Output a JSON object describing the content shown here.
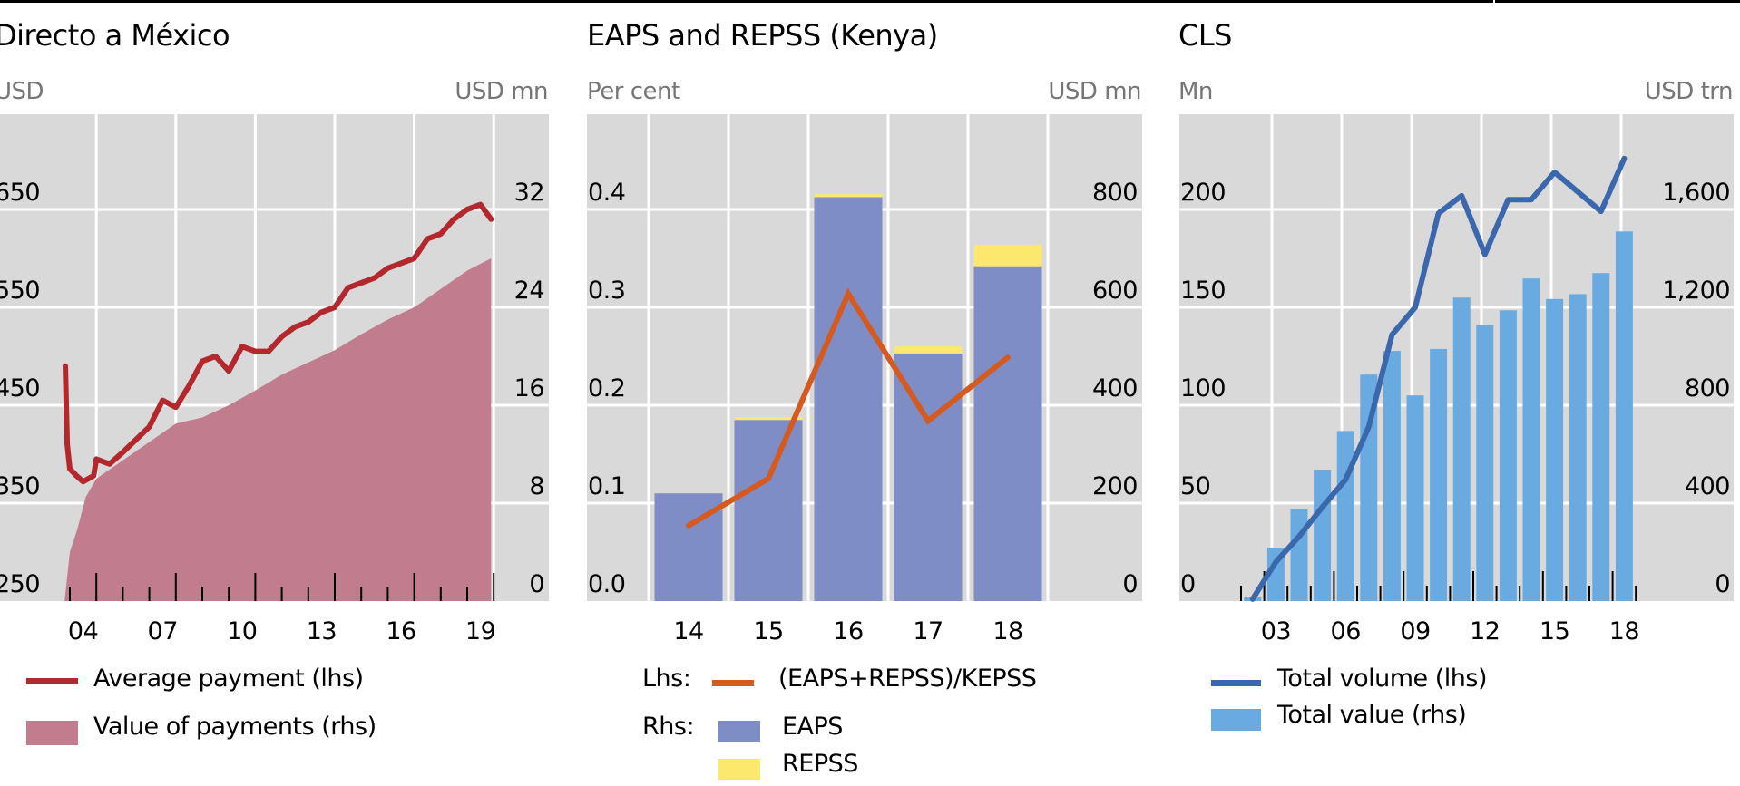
{
  "colors": {
    "plot_bg": "#d9d9d9",
    "grid": "#ffffff",
    "tick": "#000000",
    "dam_line": "#b2282d",
    "dam_area": "#c17d8e",
    "kenya_eaps": "#7f8dc6",
    "kenya_repss": "#fde86e",
    "kenya_line": "#d55a1f",
    "cls_line": "#3b68ad",
    "cls_bars": "#69abe1"
  },
  "chart_data": [
    {
      "id": "directo",
      "type": "line+area",
      "title": "Directo a México",
      "ylabel_left": "USD",
      "ylabel_right": "USD mn",
      "yticks_left": [
        "250",
        "350",
        "450",
        "550",
        "650"
      ],
      "yticks_right": [
        "0",
        "8",
        "16",
        "24",
        "32"
      ],
      "ylim_left": [
        250,
        750
      ],
      "ylim_right": [
        0,
        40
      ],
      "grid": true,
      "xlim": [
        2003.4,
        2020.9
      ],
      "xtick_labels": [
        {
          "year": 2004,
          "label": "04"
        },
        {
          "year": 2007,
          "label": "07"
        },
        {
          "year": 2010,
          "label": "10"
        },
        {
          "year": 2013,
          "label": "13"
        },
        {
          "year": 2016,
          "label": "16"
        },
        {
          "year": 2019,
          "label": "19"
        }
      ],
      "series": [
        {
          "name": "Average payment (lhs)",
          "kind": "line",
          "axis": "left",
          "x": [
            2003.83,
            2003.9,
            2004.0,
            2004.25,
            2004.5,
            2004.9,
            2005.0,
            2005.5,
            2006.0,
            2006.5,
            2007.0,
            2007.5,
            2008.0,
            2008.5,
            2009.0,
            2009.5,
            2010.0,
            2010.5,
            2011.0,
            2011.5,
            2012.0,
            2012.5,
            2013.0,
            2013.5,
            2014.0,
            2014.5,
            2015.0,
            2015.5,
            2016.0,
            2016.5,
            2017.0,
            2017.5,
            2018.0,
            2018.5,
            2019.0,
            2019.5,
            2019.9
          ],
          "values": [
            490,
            410,
            385,
            378,
            372,
            378,
            395,
            390,
            402,
            415,
            428,
            455,
            448,
            470,
            495,
            500,
            485,
            510,
            505,
            505,
            520,
            530,
            535,
            545,
            550,
            570,
            575,
            580,
            590,
            595,
            600,
            620,
            625,
            640,
            650,
            655,
            640
          ]
        },
        {
          "name": "Value of payments (rhs)",
          "kind": "area",
          "axis": "right",
          "x": [
            2003.8,
            2004.0,
            2004.3,
            2004.6,
            2005.0,
            2006.0,
            2007.0,
            2008.0,
            2009.0,
            2010.0,
            2011.0,
            2012.0,
            2013.0,
            2014.0,
            2015.0,
            2016.0,
            2017.0,
            2018.0,
            2019.0,
            2019.9
          ],
          "values": [
            0,
            4,
            6,
            8.5,
            10,
            11.5,
            13,
            14.5,
            15,
            16,
            17.2,
            18.5,
            19.5,
            20.5,
            21.8,
            23,
            24,
            25.5,
            27,
            28
          ]
        }
      ],
      "legend": [
        "Average payment (lhs)",
        "Value of payments (rhs)"
      ],
      "legend_placement": "bottom"
    },
    {
      "id": "kenya",
      "type": "bar+line",
      "title": "EAPS and REPSS (Kenya)",
      "ylabel_left": "Per cent",
      "ylabel_right": "USD mn",
      "yticks_left": [
        "0.0",
        "0.1",
        "0.2",
        "0.3",
        "0.4"
      ],
      "yticks_right": [
        "0",
        "200",
        "400",
        "600",
        "800"
      ],
      "ylim_left": [
        0,
        0.5
      ],
      "ylim_right": [
        0,
        1000
      ],
      "grid": true,
      "categories": [
        "14",
        "15",
        "16",
        "17",
        "18"
      ],
      "series": [
        {
          "name": "EAPS",
          "kind": "bar",
          "axis": "right",
          "stack": "rhs",
          "values": [
            220,
            370,
            825,
            506,
            684
          ]
        },
        {
          "name": "REPSS",
          "kind": "bar",
          "axis": "right",
          "stack": "rhs",
          "values": [
            0,
            6,
            6,
            14,
            44
          ]
        },
        {
          "name": "(EAPS+REPSS)/KEPSS",
          "kind": "line",
          "axis": "left",
          "values": [
            0.077,
            0.125,
            0.314,
            0.184,
            0.249
          ]
        }
      ],
      "legend": {
        "lhs_label": "Lhs:",
        "rhs_label": "Rhs:",
        "line": "(EAPS+REPSS)/KEPSS",
        "bars": [
          "EAPS",
          "REPSS"
        ]
      },
      "legend_placement": "bottom"
    },
    {
      "id": "cls",
      "type": "bar+line",
      "title": "CLS",
      "ylabel_left": "Mn",
      "ylabel_right": "USD trn",
      "yticks_left": [
        "0",
        "50",
        "100",
        "150",
        "200"
      ],
      "yticks_right": [
        "0",
        "400",
        "800",
        "1,200",
        "1,600"
      ],
      "ylim_left": [
        0,
        250
      ],
      "ylim_right": [
        0,
        2000
      ],
      "grid": true,
      "categories": [
        "2002",
        "2003",
        "2004",
        "2005",
        "2006",
        "2007",
        "2008",
        "2009",
        "2010",
        "2011",
        "2012",
        "2013",
        "2014",
        "2015",
        "2016",
        "2017",
        "2018"
      ],
      "xtick_labels": [
        {
          "index": 1,
          "label": "03"
        },
        {
          "index": 4,
          "label": "06"
        },
        {
          "index": 7,
          "label": "09"
        },
        {
          "index": 10,
          "label": "12"
        },
        {
          "index": 13,
          "label": "15"
        },
        {
          "index": 16,
          "label": "18"
        }
      ],
      "series": [
        {
          "name": "Total value (rhs)",
          "kind": "bar",
          "axis": "right",
          "values": [
            16,
            218,
            376,
            537,
            695,
            925,
            1022,
            840,
            1030,
            1240,
            1128,
            1188,
            1318,
            1234,
            1254,
            1340,
            1510
          ]
        },
        {
          "name": "Total volume (lhs)",
          "kind": "line",
          "axis": "left",
          "values": [
            1,
            20,
            33,
            48,
            62,
            89,
            136,
            150,
            198,
            207,
            177,
            205,
            205,
            219,
            209,
            199,
            226
          ]
        }
      ],
      "legend": [
        "Total volume (lhs)",
        "Total value (rhs)"
      ],
      "legend_placement": "bottom"
    }
  ]
}
